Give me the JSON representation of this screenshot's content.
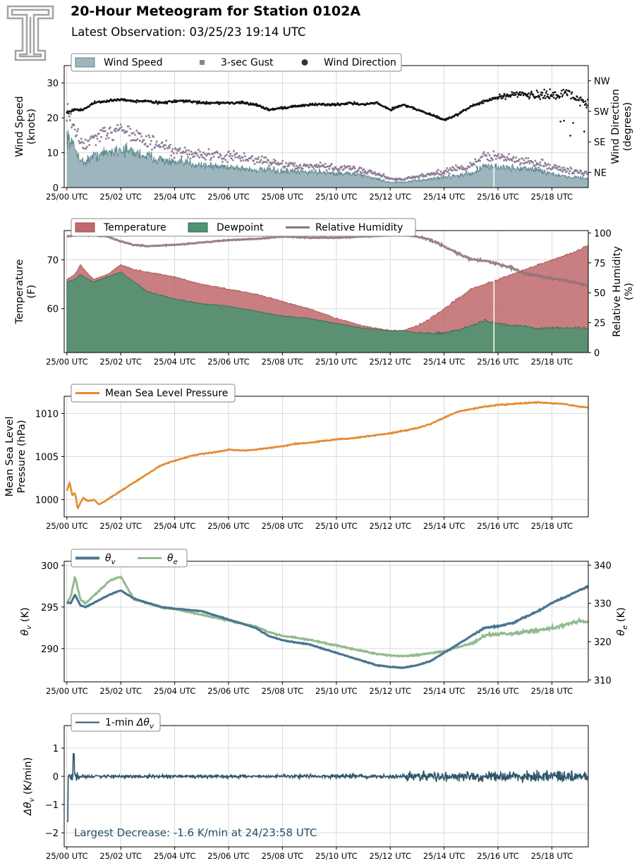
{
  "header": {
    "title": "20-Hour Meteogram for Station 0102A",
    "subtitle": "Latest Observation: 03/25/23 19:14 UTC"
  },
  "x_tick_labels": [
    "25/00 UTC",
    "25/02 UTC",
    "25/04 UTC",
    "25/06 UTC",
    "25/08 UTC",
    "25/10 UTC",
    "25/12 UTC",
    "25/14 UTC",
    "25/16 UTC",
    "25/18 UTC"
  ],
  "colors": {
    "wind_speed": "#9db5bd",
    "wind_speed_line": "#5d8890",
    "gust": "#8e7d96",
    "wind_dir": "#111111",
    "temperature": "#c0696b",
    "dewpoint": "#4f9470",
    "rh": "#8f7478",
    "mslp": "#e58a31",
    "theta_v": "#4a7691",
    "theta_e": "#91bb90",
    "dtheta": "#2e566a",
    "annotation": "#264e66"
  },
  "chart_data": [
    {
      "type": "area",
      "legend": [
        "Wind Speed",
        "3-sec Gust",
        "Wind Direction"
      ],
      "ylabel": "Wind Speed\n(knots)",
      "ylabel2": "Wind Direction\n(degrees)",
      "ylim": [
        0,
        35
      ],
      "yticks": [
        0,
        10,
        20,
        30
      ],
      "y2lim": [
        0,
        360
      ],
      "y2ticks": [
        45,
        135,
        225,
        315
      ],
      "y2ticklabels": [
        "NE",
        "SE",
        "SW",
        "NW"
      ],
      "xlim": [
        -0.1,
        19.35
      ],
      "x": [
        0,
        0.3,
        0.6,
        1,
        1.5,
        2,
        2.5,
        3,
        3.5,
        4,
        4.5,
        5,
        5.5,
        6,
        6.5,
        7,
        7.5,
        8,
        8.5,
        9,
        9.5,
        10,
        10.5,
        11,
        11.5,
        12,
        12.5,
        13,
        13.5,
        14,
        14.5,
        15,
        15.5,
        16,
        16.5,
        17,
        17.5,
        18,
        18.5,
        19,
        19.35
      ],
      "series": [
        {
          "name": "Wind Speed",
          "values": [
            15,
            11,
            7,
            9,
            10,
            11,
            10,
            9,
            8,
            7,
            7,
            6.5,
            6,
            6,
            5.5,
            5,
            5,
            4.5,
            4.5,
            4.5,
            4.5,
            4,
            4,
            3.5,
            2.5,
            1.5,
            1.5,
            2,
            2.5,
            3,
            3.5,
            4,
            6,
            6,
            5.5,
            5.5,
            5,
            4,
            3,
            3,
            2.5
          ]
        },
        {
          "name": "3-sec Gust",
          "values": [
            22,
            16,
            12,
            14,
            15,
            18,
            15,
            13,
            12,
            10,
            10,
            9.5,
            9,
            9,
            8.5,
            8,
            7.5,
            6.5,
            6,
            6,
            6,
            5.5,
            5.5,
            5,
            4,
            2.5,
            2.5,
            3,
            4,
            4.5,
            5.5,
            6,
            9,
            9,
            8,
            7.5,
            7,
            6,
            5,
            4.5,
            4
          ]
        },
        {
          "name": "Wind Direction",
          "values": [
            220,
            230,
            230,
            250,
            255,
            260,
            255,
            255,
            250,
            255,
            255,
            250,
            250,
            250,
            250,
            245,
            230,
            235,
            240,
            245,
            245,
            245,
            250,
            245,
            250,
            230,
            245,
            230,
            215,
            200,
            215,
            240,
            255,
            265,
            275,
            280,
            270,
            270,
            280,
            265,
            240
          ]
        }
      ]
    },
    {
      "type": "area",
      "legend": [
        "Temperature",
        "Dewpoint",
        "Relative Humidity"
      ],
      "ylabel": "Temperature\n(F)",
      "ylabel2": "Relative Humidity\n(%)",
      "ylim": [
        51,
        76
      ],
      "yticks": [
        60,
        70
      ],
      "y2lim": [
        0,
        102
      ],
      "y2ticks": [
        0,
        25,
        50,
        75,
        100
      ],
      "xlim": [
        -0.1,
        19.35
      ],
      "x": [
        0,
        0.3,
        0.5,
        0.8,
        1,
        1.5,
        2,
        2.5,
        3,
        4,
        5,
        6,
        7,
        8,
        9,
        10,
        11,
        12,
        12.5,
        13,
        13.5,
        14,
        14.5,
        15,
        15.5,
        16,
        16.5,
        17,
        17.5,
        18,
        18.5,
        19,
        19.35
      ],
      "series": [
        {
          "name": "Temperature",
          "values": [
            66,
            67,
            69,
            67,
            66,
            67,
            69,
            68,
            67.5,
            66.5,
            65,
            64,
            63,
            61.5,
            60,
            58,
            56.5,
            55.5,
            55.5,
            56.5,
            58,
            60,
            62,
            64,
            65,
            66,
            67,
            68,
            69,
            70,
            71,
            72,
            73
          ]
        },
        {
          "name": "Dewpoint",
          "values": [
            65.5,
            66,
            67,
            66,
            65.5,
            66.5,
            67.5,
            65.5,
            63.5,
            62,
            61,
            60.5,
            59.5,
            58.5,
            58,
            57,
            56,
            55.5,
            55.5,
            55,
            55,
            55,
            55.5,
            56.5,
            57.5,
            57,
            56.5,
            56.5,
            56,
            56,
            56,
            56,
            56
          ]
        },
        {
          "name": "Relative Humidity",
          "values": [
            97,
            98,
            100,
            98,
            98,
            97,
            93,
            90,
            89,
            90,
            92,
            94,
            95,
            97,
            96,
            96,
            97,
            98,
            98,
            97,
            94,
            89,
            83,
            78,
            77,
            74,
            71,
            66,
            64,
            62,
            60,
            58,
            56
          ]
        }
      ]
    },
    {
      "type": "line",
      "legend": [
        "Mean Sea Level Pressure"
      ],
      "ylabel": "Mean Sea Level\nPressure (hPa)",
      "ylim": [
        998,
        1012
      ],
      "yticks": [
        1000,
        1005,
        1010
      ],
      "xlim": [
        -0.1,
        19.35
      ],
      "x": [
        0,
        0.1,
        0.2,
        0.3,
        0.4,
        0.6,
        0.8,
        1,
        1.2,
        1.5,
        2,
        2.5,
        3,
        3.5,
        4,
        4.5,
        5,
        5.5,
        6,
        6.5,
        7,
        7.5,
        8,
        8.5,
        9,
        9.5,
        10,
        10.5,
        11,
        11.5,
        12,
        12.5,
        13,
        13.5,
        14,
        14.5,
        15,
        15.5,
        16,
        16.5,
        17,
        17.5,
        18,
        18.5,
        19,
        19.35
      ],
      "series": [
        {
          "name": "Mean Sea Level Pressure",
          "values": [
            1001,
            1002,
            1000.5,
            1000.8,
            999,
            1000.2,
            999.8,
            1000,
            999.4,
            1000,
            1001,
            1002,
            1003,
            1004,
            1004.5,
            1005,
            1005.3,
            1005.5,
            1005.8,
            1005.7,
            1005.8,
            1006,
            1006.2,
            1006.5,
            1006.6,
            1006.8,
            1007,
            1007.1,
            1007.3,
            1007.5,
            1007.7,
            1008,
            1008.3,
            1008.8,
            1009.5,
            1010.2,
            1010.5,
            1010.8,
            1011,
            1011.1,
            1011.2,
            1011.3,
            1011.2,
            1011.1,
            1010.8,
            1010.7
          ]
        }
      ]
    },
    {
      "type": "line",
      "legend": [
        "θv",
        "θe"
      ],
      "ylabel": "θv (K)",
      "ylabel2": "θe (K)",
      "ylim": [
        286,
        300.5
      ],
      "yticks": [
        290,
        295,
        300
      ],
      "y2lim": [
        309.5,
        341
      ],
      "y2ticks": [
        310,
        320,
        330,
        340
      ],
      "xlim": [
        -0.1,
        19.35
      ],
      "x": [
        0,
        0.15,
        0.3,
        0.5,
        0.7,
        1,
        1.3,
        1.6,
        2,
        2.5,
        3,
        3.5,
        4,
        5,
        6,
        7,
        7.5,
        8,
        9,
        10,
        11,
        11.5,
        12,
        12.5,
        13,
        13.5,
        14,
        14.5,
        15,
        15.5,
        16,
        16.5,
        17,
        17.5,
        18,
        18.5,
        19,
        19.35
      ],
      "series": [
        {
          "name": "θv",
          "values": [
            295.5,
            295.5,
            296.5,
            295.2,
            295,
            295.5,
            296,
            296.5,
            297,
            296,
            295.5,
            295,
            294.8,
            294.5,
            293.5,
            292.5,
            291.5,
            291,
            290.5,
            289.5,
            288.5,
            288,
            287.8,
            287.7,
            288,
            288.5,
            289.5,
            290.5,
            291.5,
            292.5,
            292.7,
            293,
            293.8,
            294.5,
            295.5,
            296.2,
            297,
            297.5
          ]
        },
        {
          "name": "θe",
          "values": [
            330,
            332,
            337,
            331,
            330,
            332,
            334,
            336,
            337,
            331,
            330,
            329,
            328.5,
            327,
            325.5,
            324,
            322.5,
            321.5,
            320.5,
            319,
            317.5,
            316.8,
            316.4,
            316.2,
            316.5,
            317,
            317.5,
            318.5,
            319.5,
            321.5,
            322,
            322,
            322.5,
            323,
            323.5,
            324.5,
            325.5,
            325
          ]
        }
      ]
    },
    {
      "type": "line",
      "legend": [
        "1-min Δθv"
      ],
      "ylabel": "Δθv (K/min)",
      "ylim": [
        -2.5,
        1.8
      ],
      "yticks": [
        -2,
        -1,
        0,
        1
      ],
      "xlim": [
        -0.1,
        19.35
      ],
      "annotation": "Largest Decrease: -1.6 K/min at 24/23:58 UTC",
      "series": [
        {
          "name": "1-min Δθv",
          "noise_scale": [
            0.08,
            0.08,
            0.1,
            0.25,
            0.3
          ],
          "min": -1.6,
          "max": 0.8
        }
      ]
    }
  ]
}
